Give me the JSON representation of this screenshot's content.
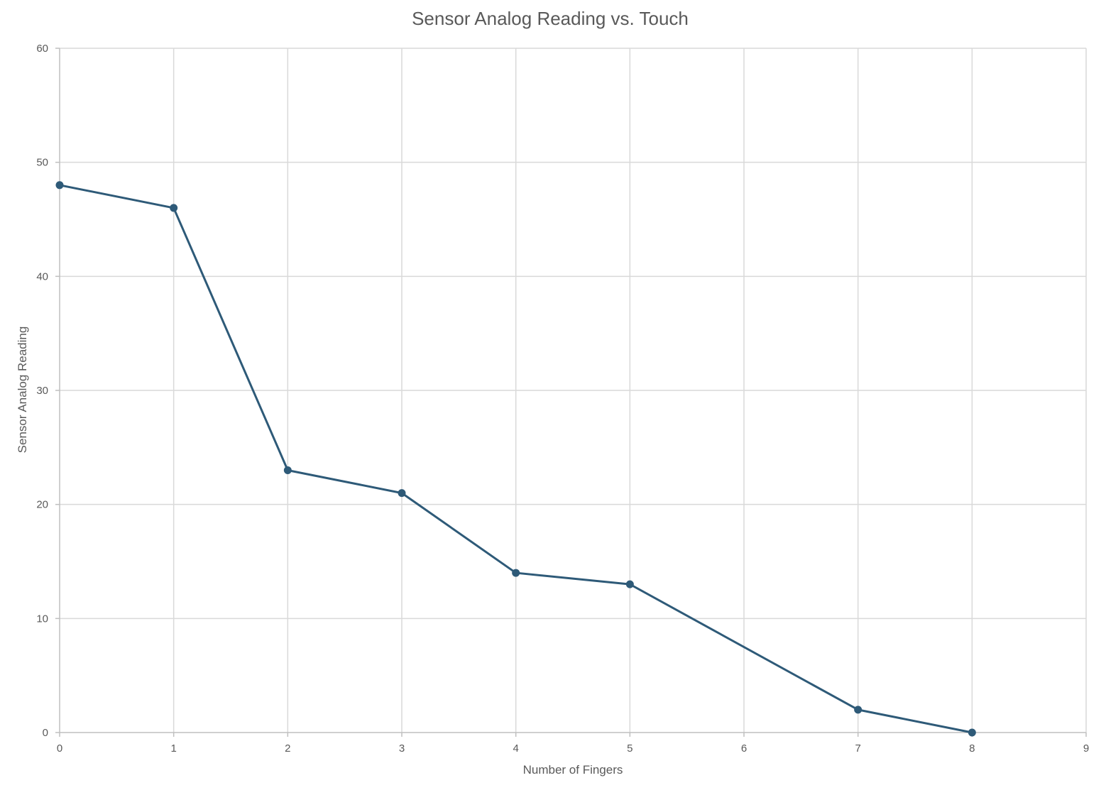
{
  "chart_data": {
    "type": "scatter",
    "title": "Sensor Analog Reading vs. Touch",
    "xlabel": "Number of Fingers",
    "ylabel": "Sensor Analog Reading",
    "xlim": [
      0,
      9
    ],
    "ylim": [
      0,
      60
    ],
    "xticks": [
      "0",
      "1",
      "2",
      "3",
      "4",
      "5",
      "6",
      "7",
      "8",
      "9"
    ],
    "yticks": [
      "0",
      "10",
      "20",
      "30",
      "40",
      "50",
      "60"
    ],
    "grid": true,
    "legend": "none",
    "lines_connected": true,
    "markers": true,
    "series": [
      {
        "color": "#2e5a78",
        "x": [
          0,
          1,
          2,
          3,
          4,
          5,
          7,
          8
        ],
        "y": [
          48,
          46,
          23,
          21,
          14,
          13,
          2,
          0
        ]
      }
    ]
  }
}
